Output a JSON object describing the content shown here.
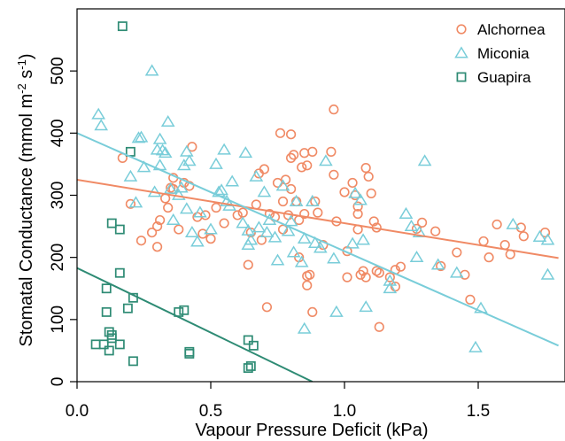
{
  "chart_data": {
    "type": "scatter",
    "xlabel": "Vapour Pressure Deficit (kPa)",
    "ylabel": {
      "prefix": "Stomatal Conductance (mmol m",
      "sup1": "-2",
      "mid": " s",
      "sup2": "-1",
      "suffix": ")"
    },
    "xlim": [
      0,
      1.8
    ],
    "ylim": [
      0,
      600
    ],
    "x_ticks": [
      {
        "value": 0,
        "label": "0.0"
      },
      {
        "value": 0.5,
        "label": "0.5"
      },
      {
        "value": 1.0,
        "label": "1.0"
      },
      {
        "value": 1.5,
        "label": "1.5"
      }
    ],
    "y_ticks": [
      {
        "value": 0,
        "label": "0"
      },
      {
        "value": 100,
        "label": "100"
      },
      {
        "value": 200,
        "label": "200"
      },
      {
        "value": 300,
        "label": "300"
      },
      {
        "value": 400,
        "label": "400"
      },
      {
        "value": 500,
        "label": "500"
      }
    ],
    "grid": false,
    "legend_position": "top-right",
    "series": [
      {
        "name": "Alchornea",
        "marker": "circle",
        "color": "#F08A65",
        "fit": {
          "intercept": 325,
          "slope": -70
        },
        "points": [
          [
            0.17,
            360
          ],
          [
            0.2,
            286
          ],
          [
            0.24,
            227
          ],
          [
            0.28,
            240
          ],
          [
            0.3,
            250
          ],
          [
            0.3,
            217
          ],
          [
            0.31,
            260
          ],
          [
            0.33,
            295
          ],
          [
            0.34,
            280
          ],
          [
            0.35,
            312
          ],
          [
            0.36,
            328
          ],
          [
            0.36,
            310
          ],
          [
            0.38,
            245
          ],
          [
            0.4,
            320
          ],
          [
            0.42,
            315
          ],
          [
            0.43,
            378
          ],
          [
            0.45,
            265
          ],
          [
            0.47,
            238
          ],
          [
            0.48,
            268
          ],
          [
            0.5,
            230
          ],
          [
            0.52,
            280
          ],
          [
            0.55,
            255
          ],
          [
            0.6,
            268
          ],
          [
            0.62,
            272
          ],
          [
            0.64,
            188
          ],
          [
            0.65,
            240
          ],
          [
            0.67,
            285
          ],
          [
            0.68,
            335
          ],
          [
            0.69,
            228
          ],
          [
            0.7,
            342
          ],
          [
            0.71,
            120
          ],
          [
            0.72,
            270
          ],
          [
            0.74,
            265
          ],
          [
            0.75,
            320
          ],
          [
            0.76,
            400
          ],
          [
            0.77,
            290
          ],
          [
            0.77,
            245
          ],
          [
            0.78,
            325
          ],
          [
            0.79,
            268
          ],
          [
            0.8,
            398
          ],
          [
            0.8,
            360
          ],
          [
            0.8,
            310
          ],
          [
            0.81,
            365
          ],
          [
            0.82,
            290
          ],
          [
            0.83,
            260
          ],
          [
            0.83,
            200
          ],
          [
            0.84,
            345
          ],
          [
            0.85,
            368
          ],
          [
            0.85,
            270
          ],
          [
            0.86,
            348
          ],
          [
            0.86,
            170
          ],
          [
            0.86,
            155
          ],
          [
            0.87,
            172
          ],
          [
            0.88,
            112
          ],
          [
            0.88,
            370
          ],
          [
            0.89,
            290
          ],
          [
            0.9,
            272
          ],
          [
            0.92,
            220
          ],
          [
            0.95,
            370
          ],
          [
            0.96,
            438
          ],
          [
            0.96,
            333
          ],
          [
            0.97,
            258
          ],
          [
            1.0,
            305
          ],
          [
            1.01,
            210
          ],
          [
            1.01,
            168
          ],
          [
            1.03,
            320
          ],
          [
            1.04,
            300
          ],
          [
            1.05,
            282
          ],
          [
            1.05,
            270
          ],
          [
            1.05,
            245
          ],
          [
            1.06,
            172
          ],
          [
            1.07,
            178
          ],
          [
            1.08,
            168
          ],
          [
            1.08,
            344
          ],
          [
            1.09,
            330
          ],
          [
            1.1,
            303
          ],
          [
            1.11,
            258
          ],
          [
            1.12,
            248
          ],
          [
            1.12,
            178
          ],
          [
            1.13,
            175
          ],
          [
            1.13,
            88
          ],
          [
            1.17,
            168
          ],
          [
            1.19,
            180
          ],
          [
            1.19,
            153
          ],
          [
            1.21,
            185
          ],
          [
            1.27,
            246
          ],
          [
            1.29,
            256
          ],
          [
            1.34,
            242
          ],
          [
            1.36,
            186
          ],
          [
            1.42,
            208
          ],
          [
            1.45,
            172
          ],
          [
            1.47,
            132
          ],
          [
            1.52,
            226
          ],
          [
            1.54,
            200
          ],
          [
            1.57,
            253
          ],
          [
            1.6,
            220
          ],
          [
            1.62,
            205
          ],
          [
            1.66,
            248
          ],
          [
            1.67,
            234
          ],
          [
            1.75,
            240
          ]
        ]
      },
      {
        "name": "Miconia",
        "marker": "triangle",
        "color": "#79CDD9",
        "fit": {
          "intercept": 400,
          "slope": -190
        },
        "points": [
          [
            0.08,
            430
          ],
          [
            0.09,
            412
          ],
          [
            0.2,
            330
          ],
          [
            0.22,
            288
          ],
          [
            0.23,
            392
          ],
          [
            0.24,
            393
          ],
          [
            0.25,
            345
          ],
          [
            0.28,
            500
          ],
          [
            0.29,
            305
          ],
          [
            0.3,
            373
          ],
          [
            0.31,
            390
          ],
          [
            0.31,
            348
          ],
          [
            0.32,
            372
          ],
          [
            0.33,
            368
          ],
          [
            0.34,
            418
          ],
          [
            0.35,
            310
          ],
          [
            0.36,
            260
          ],
          [
            0.38,
            300
          ],
          [
            0.39,
            312
          ],
          [
            0.4,
            348
          ],
          [
            0.41,
            370
          ],
          [
            0.41,
            278
          ],
          [
            0.42,
            355
          ],
          [
            0.43,
            240
          ],
          [
            0.45,
            225
          ],
          [
            0.46,
            272
          ],
          [
            0.5,
            245
          ],
          [
            0.52,
            350
          ],
          [
            0.53,
            305
          ],
          [
            0.54,
            308
          ],
          [
            0.55,
            373
          ],
          [
            0.56,
            290
          ],
          [
            0.57,
            283
          ],
          [
            0.58,
            322
          ],
          [
            0.62,
            255
          ],
          [
            0.63,
            368
          ],
          [
            0.64,
            243
          ],
          [
            0.64,
            220
          ],
          [
            0.65,
            228
          ],
          [
            0.67,
            330
          ],
          [
            0.68,
            248
          ],
          [
            0.7,
            305
          ],
          [
            0.71,
            240
          ],
          [
            0.72,
            260
          ],
          [
            0.74,
            232
          ],
          [
            0.75,
            195
          ],
          [
            0.77,
            315
          ],
          [
            0.79,
            242
          ],
          [
            0.8,
            258
          ],
          [
            0.81,
            208
          ],
          [
            0.82,
            290
          ],
          [
            0.84,
            192
          ],
          [
            0.85,
            230
          ],
          [
            0.85,
            85
          ],
          [
            0.88,
            290
          ],
          [
            0.89,
            223
          ],
          [
            0.91,
            215
          ],
          [
            0.93,
            355
          ],
          [
            0.96,
            198
          ],
          [
            0.97,
            112
          ],
          [
            1.03,
            222
          ],
          [
            1.04,
            303
          ],
          [
            1.06,
            292
          ],
          [
            1.07,
            228
          ],
          [
            1.08,
            120
          ],
          [
            1.17,
            150
          ],
          [
            1.17,
            162
          ],
          [
            1.23,
            270
          ],
          [
            1.25,
            250
          ],
          [
            1.27,
            200
          ],
          [
            1.28,
            240
          ],
          [
            1.3,
            355
          ],
          [
            1.35,
            188
          ],
          [
            1.42,
            175
          ],
          [
            1.49,
            55
          ],
          [
            1.51,
            118
          ],
          [
            1.63,
            253
          ],
          [
            1.73,
            233
          ],
          [
            1.76,
            172
          ],
          [
            1.76,
            228
          ]
        ]
      },
      {
        "name": "Guapira",
        "marker": "square",
        "color": "#2E8B74",
        "fit": {
          "intercept": 183,
          "slope": -208
        },
        "points": [
          [
            0.07,
            60
          ],
          [
            0.1,
            60
          ],
          [
            0.11,
            112
          ],
          [
            0.11,
            150
          ],
          [
            0.12,
            50
          ],
          [
            0.12,
            80
          ],
          [
            0.13,
            70
          ],
          [
            0.13,
            75
          ],
          [
            0.13,
            255
          ],
          [
            0.16,
            60
          ],
          [
            0.16,
            175
          ],
          [
            0.16,
            245
          ],
          [
            0.17,
            572
          ],
          [
            0.19,
            118
          ],
          [
            0.2,
            370
          ],
          [
            0.21,
            135
          ],
          [
            0.21,
            33
          ],
          [
            0.38,
            112
          ],
          [
            0.4,
            115
          ],
          [
            0.42,
            48
          ],
          [
            0.42,
            45
          ],
          [
            0.64,
            22
          ],
          [
            0.64,
            67
          ],
          [
            0.65,
            25
          ],
          [
            0.66,
            58
          ]
        ]
      }
    ]
  }
}
